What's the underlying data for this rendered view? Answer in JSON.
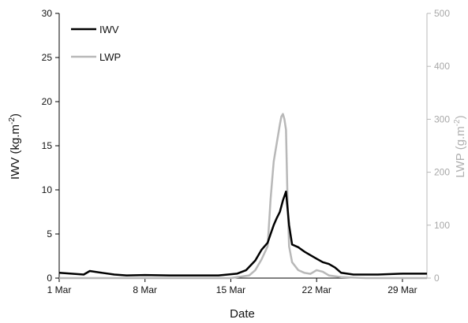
{
  "chart_data": {
    "type": "line",
    "x_type": "date",
    "xlabel": "Date",
    "ylabel_left": "IWV (kg.m",
    "ylabel_left_sup": "-2",
    "ylabel_left_tail": ")",
    "ylabel_right": "LWP (g.m",
    "ylabel_right_sup": "-2",
    "ylabel_right_tail": ")",
    "x_ticks": [
      "1 Mar",
      "8 Mar",
      "15 Mar",
      "22 Mar",
      "29 Mar"
    ],
    "x_tick_dates": [
      "03-01",
      "03-08",
      "03-15",
      "03-22",
      "03-29"
    ],
    "x_range": [
      "03-01",
      "03-31"
    ],
    "y_left_ticks": [
      "0",
      "5",
      "10",
      "15",
      "20",
      "25",
      "30"
    ],
    "y_left_range": [
      0,
      30
    ],
    "y_right_ticks": [
      "0",
      "100",
      "200",
      "300",
      "400",
      "500"
    ],
    "y_right_range": [
      0,
      500
    ],
    "legend_position": "top-left",
    "grid": false,
    "series": [
      {
        "name": "IWV",
        "axis": "left",
        "color": "#000000",
        "x": [
          "03-01 00:00",
          "03-02 00:00",
          "03-03 00:00",
          "03-03 12:00",
          "03-04 12:00",
          "03-05 12:00",
          "03-06 12:00",
          "03-08 00:00",
          "03-10 00:00",
          "03-12 00:00",
          "03-14 00:00",
          "03-15 12:00",
          "03-16 06:00",
          "03-17 00:00",
          "03-17 12:00",
          "03-18 00:00",
          "03-18 06:00",
          "03-18 12:00",
          "03-18 18:00",
          "03-19 00:00",
          "03-19 06:00",
          "03-19 12:00",
          "03-19 18:00",
          "03-20 00:00",
          "03-20 12:00",
          "03-21 00:00",
          "03-21 12:00",
          "03-22 00:00",
          "03-22 12:00",
          "03-23 00:00",
          "03-23 12:00",
          "03-24 00:00",
          "03-25 00:00",
          "03-27 00:00",
          "03-29 00:00",
          "03-31 00:00"
        ],
        "y": [
          0.6,
          0.5,
          0.4,
          0.8,
          0.6,
          0.4,
          0.3,
          0.35,
          0.3,
          0.3,
          0.3,
          0.5,
          0.9,
          2.0,
          3.2,
          4.0,
          5.0,
          6.0,
          6.8,
          7.5,
          8.8,
          9.8,
          6.0,
          3.8,
          3.5,
          3.0,
          2.6,
          2.2,
          1.8,
          1.6,
          1.2,
          0.6,
          0.4,
          0.4,
          0.5,
          0.5
        ]
      },
      {
        "name": "LWP",
        "axis": "right",
        "color": "#b8b8b8",
        "x": [
          "03-01 00:00",
          "03-05 00:00",
          "03-10 00:00",
          "03-15 00:00",
          "03-16 12:00",
          "03-17 00:00",
          "03-17 12:00",
          "03-18 00:00",
          "03-18 06:00",
          "03-18 12:00",
          "03-18 18:00",
          "03-19 00:00",
          "03-19 03:00",
          "03-19 06:00",
          "03-19 09:00",
          "03-19 12:00",
          "03-19 15:00",
          "03-19 18:00",
          "03-20 00:00",
          "03-20 12:00",
          "03-21 00:00",
          "03-21 12:00",
          "03-22 00:00",
          "03-22 12:00",
          "03-23 00:00",
          "03-24 00:00",
          "03-26 00:00",
          "03-28 00:00",
          "03-31 00:00"
        ],
        "y": [
          0,
          0,
          0,
          0,
          5,
          15,
          35,
          60,
          150,
          220,
          255,
          290,
          305,
          310,
          300,
          280,
          150,
          60,
          30,
          15,
          10,
          8,
          15,
          12,
          5,
          2,
          0,
          0,
          0
        ]
      }
    ]
  }
}
